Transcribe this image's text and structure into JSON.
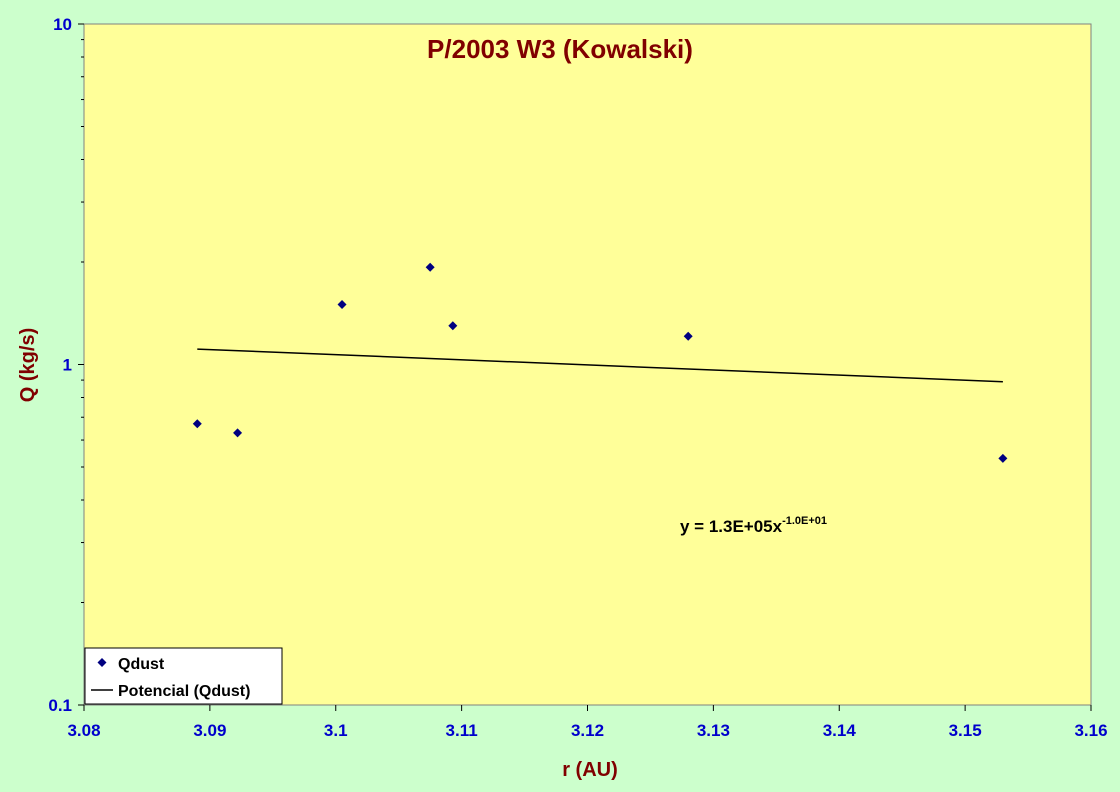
{
  "chart_data": {
    "type": "scatter",
    "title": "P/2003 W3 (Kowalski)",
    "xlabel": "r (AU)",
    "ylabel": "Q (kg/s)",
    "xlim": [
      3.08,
      3.16
    ],
    "ylim": [
      0.1,
      10
    ],
    "yscale": "log",
    "x_ticks": [
      "3.08",
      "3.09",
      "3.1",
      "3.11",
      "3.12",
      "3.13",
      "3.14",
      "3.15",
      "3.16"
    ],
    "y_ticks": [
      "0.1",
      "1",
      "10"
    ],
    "grid": false,
    "legend_position": "bottom-left",
    "series": [
      {
        "name": "Qdust",
        "marker": "diamond",
        "color": "#000080",
        "x": [
          3.089,
          3.0922,
          3.1005,
          3.1075,
          3.1093,
          3.128,
          3.153
        ],
        "y": [
          0.67,
          0.63,
          1.5,
          1.93,
          1.3,
          1.21,
          0.53
        ]
      },
      {
        "name": "Potencial (Qdust)",
        "type": "line",
        "color": "#000000",
        "x": [
          3.089,
          3.153
        ],
        "y": [
          1.11,
          0.89
        ]
      }
    ],
    "annotation": {
      "prefix": "y = 1.3E+05x",
      "exponent": "-1.0E+01"
    },
    "colors": {
      "page_background": "#ccffcc",
      "plot_background": "#ffff99",
      "title": "#800000",
      "tick_labels": "#0000cc"
    }
  }
}
